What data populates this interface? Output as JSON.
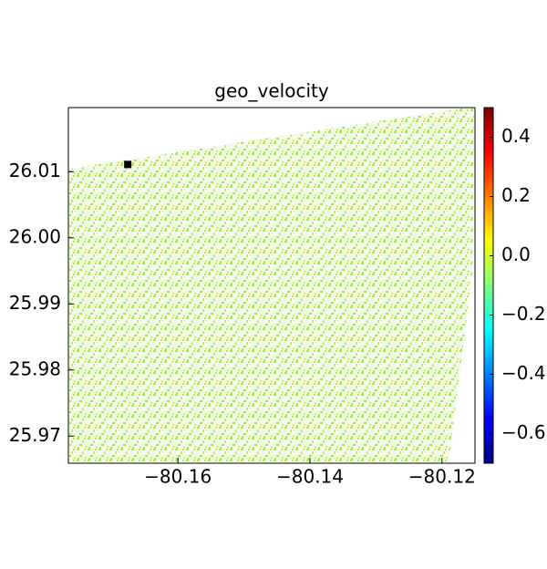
{
  "chart_data": {
    "type": "heatmap",
    "title": "geo_velocity",
    "colormap": "jet",
    "xlim": [
      -80.1766,
      -80.115
    ],
    "ylim": [
      25.9659,
      26.0197
    ],
    "xticks": [
      {
        "value": -80.16,
        "label": "−80.16"
      },
      {
        "value": -80.14,
        "label": "−80.14"
      },
      {
        "value": -80.12,
        "label": "−80.12"
      }
    ],
    "yticks": [
      25.97,
      25.98,
      25.99,
      {
        "value": 26.0,
        "label": "26.00"
      },
      26.01
    ],
    "clim": [
      -0.7,
      0.5
    ],
    "cticks": [
      {
        "value": -0.6,
        "label": "−0.6"
      },
      {
        "value": -0.4,
        "label": "−0.4"
      },
      {
        "value": -0.2,
        "label": "−0.2"
      },
      {
        "value": 0.0,
        "label": "0.0"
      },
      0.2,
      0.4
    ],
    "marker": {
      "x": -80.1676,
      "y": 26.0111,
      "color": "#000000"
    }
  }
}
